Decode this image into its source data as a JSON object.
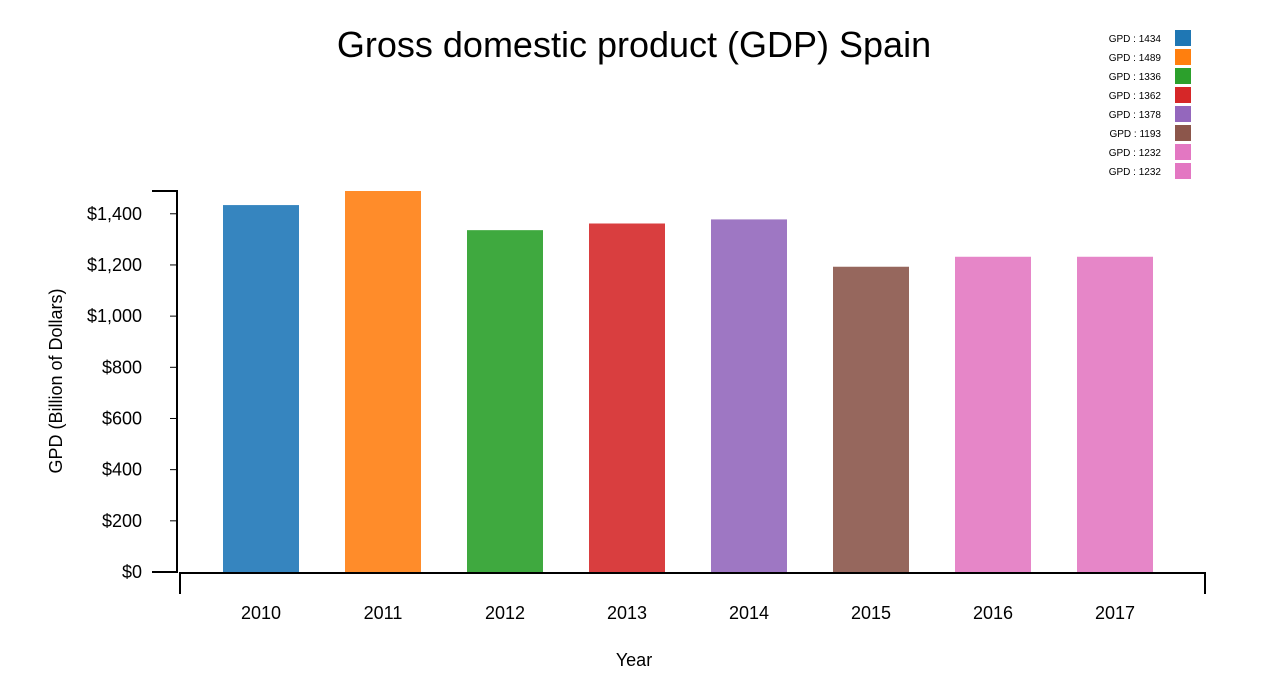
{
  "chart_data": {
    "type": "bar",
    "title": "Gross domestic product (GDP) Spain",
    "xlabel": "Year",
    "ylabel": "GPD (Billion of Dollars)",
    "categories": [
      "2010",
      "2011",
      "2012",
      "2013",
      "2014",
      "2015",
      "2016",
      "2017"
    ],
    "values": [
      1434,
      1489,
      1336,
      1362,
      1378,
      1193,
      1232,
      1232
    ],
    "colors": [
      "#3685bf",
      "#ff8c2a",
      "#3fa93f",
      "#d93e3f",
      "#9e77c3",
      "#96675d",
      "#e686c8",
      "#e686c8"
    ],
    "ylim": [
      0,
      1489
    ],
    "yticks": [
      {
        "value": 0,
        "label": "$0"
      },
      {
        "value": 200,
        "label": "$200"
      },
      {
        "value": 400,
        "label": "$400"
      },
      {
        "value": 600,
        "label": "$600"
      },
      {
        "value": 800,
        "label": "$800"
      },
      {
        "value": 1000,
        "label": "$1,000"
      },
      {
        "value": 1200,
        "label": "$1,200"
      },
      {
        "value": 1400,
        "label": "$1,400"
      }
    ],
    "legend": {
      "position": "top-right",
      "entries": [
        {
          "label": "GPD : 1434",
          "color": "#1f77b4"
        },
        {
          "label": "GPD : 1489",
          "color": "#ff7f0e"
        },
        {
          "label": "GPD : 1336",
          "color": "#2ca02c"
        },
        {
          "label": "GPD : 1362",
          "color": "#d62728"
        },
        {
          "label": "GPD : 1378",
          "color": "#9467bd"
        },
        {
          "label": "GPD : 1193",
          "color": "#8c564b"
        },
        {
          "label": "GPD : 1232",
          "color": "#e377c2"
        },
        {
          "label": "GPD : 1232",
          "color": "#e377c2"
        }
      ]
    },
    "grid": false
  }
}
